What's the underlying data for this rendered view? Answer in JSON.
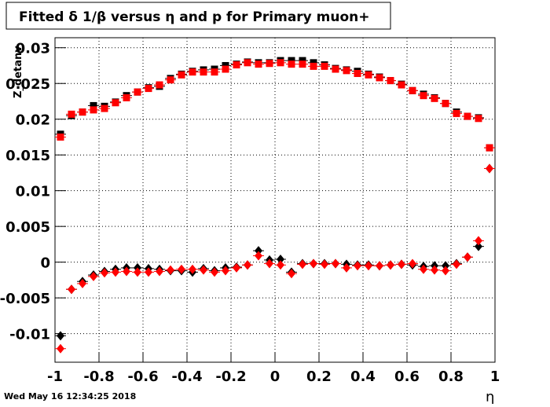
{
  "chart_data": {
    "type": "scatter",
    "title": "Fitted δ 1/β versus η and p for Primary muon+",
    "x_label": "η",
    "y_label": "Z_detanv",
    "timestamp": "Wed May 16 12:34:25 2018",
    "grid": true,
    "xlim": [
      -1,
      1
    ],
    "xticks": [
      -1,
      -0.8,
      -0.6,
      -0.4,
      -0.2,
      0,
      0.2,
      0.4,
      0.6,
      0.8,
      1
    ],
    "ylim": [
      -0.014,
      0.0314
    ],
    "yticks": [
      -0.01,
      -0.005,
      0,
      0.005,
      0.01,
      0.015,
      0.02,
      0.025,
      0.03
    ],
    "x": [
      -0.975,
      -0.925,
      -0.875,
      -0.825,
      -0.775,
      -0.725,
      -0.675,
      -0.625,
      -0.575,
      -0.525,
      -0.475,
      -0.425,
      -0.375,
      -0.325,
      -0.275,
      -0.225,
      -0.175,
      -0.125,
      -0.075,
      -0.025,
      0.025,
      0.075,
      0.125,
      0.175,
      0.225,
      0.275,
      0.325,
      0.375,
      0.425,
      0.475,
      0.525,
      0.575,
      0.625,
      0.675,
      0.725,
      0.775,
      0.825,
      0.875,
      0.925,
      0.975
    ],
    "series": [
      {
        "color": "#000000",
        "marker": "square",
        "values": [
          0.0179,
          0.0205,
          0.021,
          0.0219,
          0.0218,
          0.0224,
          0.0233,
          0.0238,
          0.0244,
          0.0246,
          0.0257,
          0.0263,
          0.0267,
          0.0269,
          0.027,
          0.0275,
          0.0277,
          0.028,
          0.0279,
          0.0279,
          0.0282,
          0.0282,
          0.0282,
          0.0279,
          0.0276,
          0.0271,
          0.0269,
          0.0267,
          0.0263,
          0.0259,
          0.0254,
          0.0249,
          0.024,
          0.0235,
          0.023,
          0.0222,
          0.021,
          0.0204,
          0.0202,
          0.016
        ]
      },
      {
        "color": "#ff0000",
        "marker": "square",
        "values": [
          0.0175,
          0.0207,
          0.021,
          0.0213,
          0.0215,
          0.0223,
          0.023,
          0.0238,
          0.0243,
          0.0248,
          0.0255,
          0.0262,
          0.0266,
          0.0266,
          0.0266,
          0.027,
          0.0276,
          0.0279,
          0.0277,
          0.0278,
          0.0279,
          0.0277,
          0.0277,
          0.0274,
          0.0274,
          0.027,
          0.0268,
          0.0264,
          0.0262,
          0.0258,
          0.0254,
          0.0248,
          0.024,
          0.0233,
          0.0229,
          0.0222,
          0.0208,
          0.0204,
          0.0201,
          0.016
        ]
      },
      {
        "color": "#000000",
        "marker": "diamond",
        "values": [
          -0.0103,
          -0.0038,
          -0.0027,
          -0.0018,
          -0.0013,
          -0.001,
          -0.0008,
          -0.0008,
          -0.0009,
          -0.001,
          -0.0012,
          -0.0012,
          -0.0014,
          -0.0009,
          -0.0012,
          -0.0008,
          -0.0007,
          -0.0004,
          0.0016,
          0.0003,
          0.0004,
          -0.0014,
          -0.0002,
          -0.0002,
          -0.0002,
          -0.0002,
          -0.0003,
          -0.0004,
          -0.0004,
          -0.0005,
          -0.0004,
          -0.0003,
          -0.0004,
          -0.0006,
          -0.0005,
          -0.0005,
          -0.0002,
          0.0007,
          0.0022,
          0.0131
        ]
      },
      {
        "color": "#ff0000",
        "marker": "diamond",
        "values": [
          -0.0121,
          -0.0038,
          -0.003,
          -0.002,
          -0.0015,
          -0.0014,
          -0.0013,
          -0.0014,
          -0.0014,
          -0.0013,
          -0.0011,
          -0.001,
          -0.001,
          -0.0011,
          -0.0014,
          -0.0012,
          -0.0008,
          -0.0004,
          0.0009,
          -0.0002,
          -0.0004,
          -0.0016,
          -0.0003,
          -0.0002,
          -0.0003,
          -0.0002,
          -0.0008,
          -0.0005,
          -0.0005,
          -0.0005,
          -0.0004,
          -0.0003,
          -0.0002,
          -0.001,
          -0.0011,
          -0.0012,
          -0.0003,
          0.0007,
          0.003,
          0.0131
        ]
      }
    ]
  }
}
